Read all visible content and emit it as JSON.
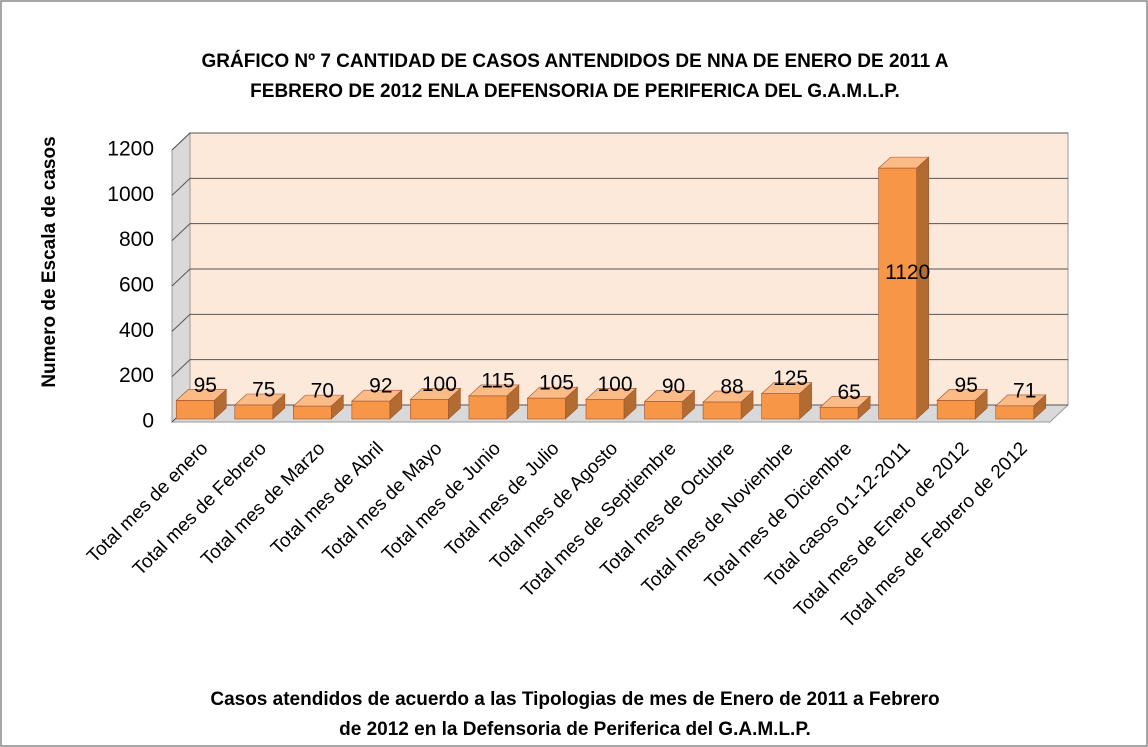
{
  "chart_data": {
    "type": "bar3d",
    "title": [
      "GRÁFICO Nº 7 CANTIDAD DE CASOS ANTENDIDOS DE NNA  DE ENERO DE 2011 A",
      "FEBRERO DE 2012 ENLA DEFENSORIA DE PERIFERICA  DEL G.A.M.L.P."
    ],
    "y_label": "Numero de Escala de casos",
    "x_label": [
      "Casos atendidos de acuerdo a las Tipologias de mes de Enero  de 2011 a Febrero",
      "de 2012 en  la Defensoria de Periferica del   G.A.M.L.P."
    ],
    "categories": [
      "Total mes de enero",
      "Total mes de Febrero",
      "Total mes de Marzo",
      "Total mes de Abril",
      "Total mes de Mayo",
      "Total mes de Junio",
      "Total mes de Julio",
      "Total mes de Agosto",
      "Total mes de Septiembre",
      "Total mes de Octubre",
      "Total mes de Noviembre",
      "Total mes de Diciembre",
      "Total casos 01-12-2011",
      "Total mes de Enero de 2012",
      "Total mes de Febrero de 2012"
    ],
    "values": [
      95,
      75,
      70,
      92,
      100,
      115,
      105,
      100,
      90,
      88,
      125,
      65,
      1120,
      95,
      71
    ],
    "color": "#f79646",
    "ylim": [
      0,
      1200
    ],
    "yticks": [
      0,
      200,
      400,
      600,
      800,
      1000,
      1200
    ],
    "grid": true
  }
}
